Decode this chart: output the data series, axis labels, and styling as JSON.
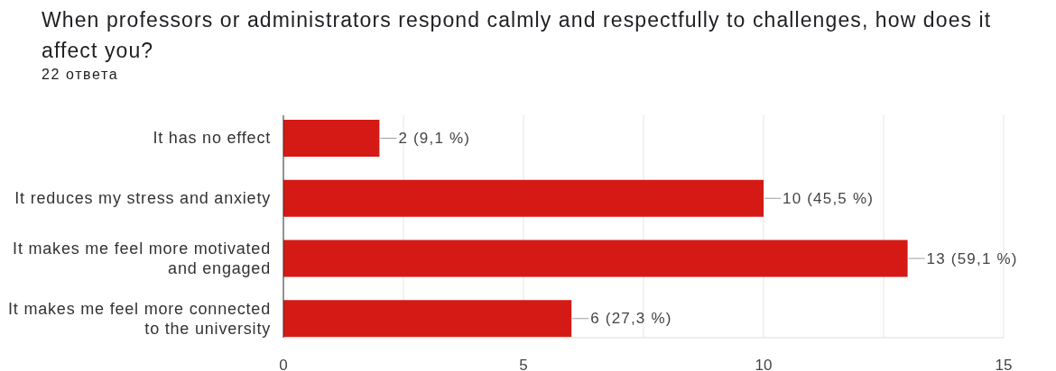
{
  "chart_data": {
    "type": "bar",
    "orientation": "horizontal",
    "title": "When professors or administrators respond calmly and respectfully to challenges, how does it affect you?",
    "subtitle": "22 ответа",
    "categories": [
      "It has no effect",
      "It reduces my stress and anxiety",
      "It makes me feel more motivated and engaged",
      "It makes me feel more connected to the university"
    ],
    "values": [
      2,
      10,
      13,
      6
    ],
    "color": "#d51a15",
    "value_labels": [
      "2 (9,1 %)",
      "10 (45,5 %)",
      "13 (59,1 %)",
      "6 (27,3 %)"
    ],
    "xlim": [
      0,
      15
    ],
    "xticks": [
      0,
      {
        "value": 2.5,
        "label": null
      },
      5,
      {
        "value": 7.5,
        "label": null
      },
      10,
      {
        "value": 12.5,
        "label": null
      },
      15
    ],
    "grid": "x"
  }
}
